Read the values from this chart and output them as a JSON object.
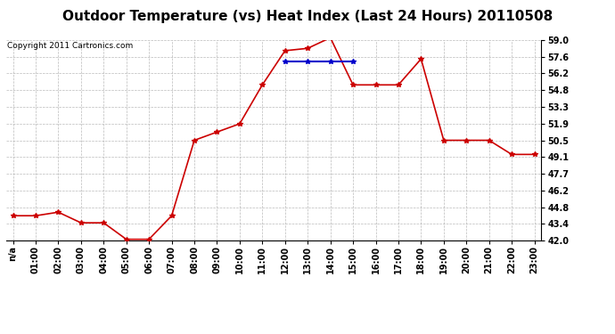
{
  "title": "Outdoor Temperature (vs) Heat Index (Last 24 Hours) 20110508",
  "copyright": "Copyright 2011 Cartronics.com",
  "x_labels": [
    "n/a",
    "01:00",
    "02:00",
    "03:00",
    "04:00",
    "05:00",
    "06:00",
    "07:00",
    "08:00",
    "09:00",
    "10:00",
    "11:00",
    "12:00",
    "13:00",
    "14:00",
    "15:00",
    "16:00",
    "17:00",
    "18:00",
    "19:00",
    "20:00",
    "21:00",
    "22:00",
    "23:00"
  ],
  "temp_values": [
    44.1,
    44.1,
    44.4,
    43.5,
    43.5,
    42.1,
    42.1,
    44.1,
    50.5,
    51.2,
    51.9,
    55.2,
    58.1,
    58.3,
    59.2,
    55.2,
    55.2,
    55.2,
    57.4,
    50.5,
    50.5,
    50.5,
    49.3,
    49.3
  ],
  "heat_values": [
    null,
    null,
    null,
    null,
    null,
    null,
    null,
    null,
    null,
    null,
    null,
    null,
    57.2,
    57.2,
    57.2,
    57.2,
    null,
    null,
    null,
    null,
    null,
    null,
    null,
    null
  ],
  "temp_color": "#cc0000",
  "heat_color": "#0000cc",
  "ylim": [
    42.0,
    59.0
  ],
  "yticks": [
    42.0,
    43.4,
    44.8,
    46.2,
    47.7,
    49.1,
    50.5,
    51.9,
    53.3,
    54.8,
    56.2,
    57.6,
    59.0
  ],
  "background_color": "#ffffff",
  "grid_color": "#aaaaaa",
  "title_fontsize": 11,
  "tick_fontsize": 7,
  "copyright_fontsize": 6.5,
  "marker_size": 4
}
